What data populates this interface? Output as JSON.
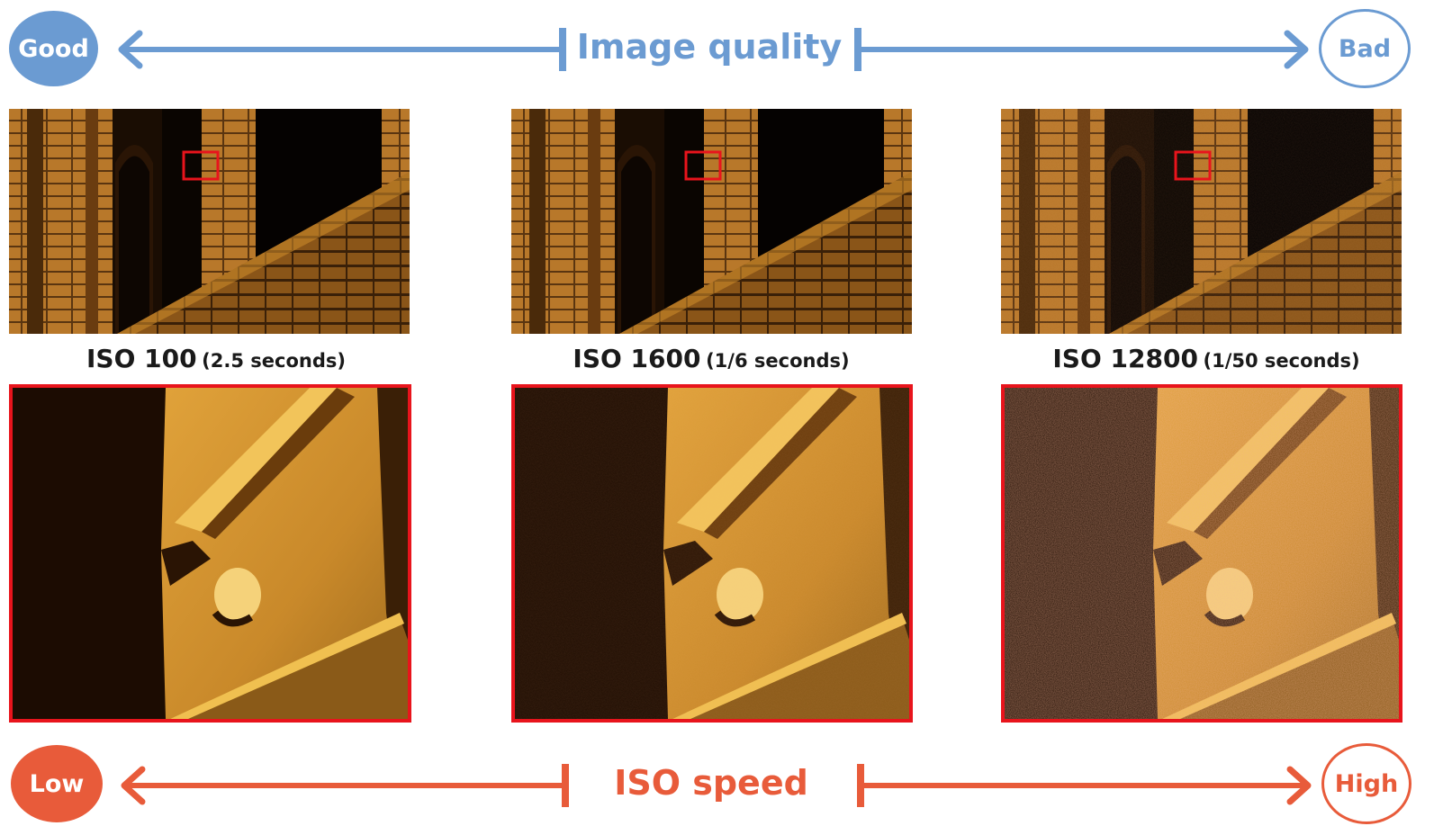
{
  "top_axis": {
    "title": "Image quality",
    "left_label": "Good",
    "right_label": "Bad",
    "color": "#6b9bd2"
  },
  "bottom_axis": {
    "title": "ISO speed",
    "left_label": "Low",
    "right_label": "High",
    "color": "#e85b3a"
  },
  "highlight_color": "#e8141c",
  "samples": [
    {
      "iso": "ISO 100",
      "exposure": "(2.5 seconds)",
      "noise": 0.0
    },
    {
      "iso": "ISO 1600",
      "exposure": "(1/6 seconds)",
      "noise": 0.15
    },
    {
      "iso": "ISO 12800",
      "exposure": "(1/50 seconds)",
      "noise": 0.6
    }
  ]
}
